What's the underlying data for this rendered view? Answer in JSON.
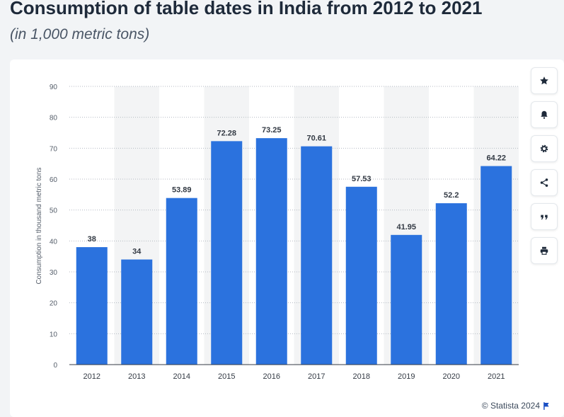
{
  "header": {
    "title": "Consumption of table dates in India from 2012 to 2021",
    "subtitle": "(in 1,000 metric tons)"
  },
  "toolbar": {
    "icons": [
      "star-icon",
      "bell-icon",
      "gear-icon",
      "share-icon",
      "quote-icon",
      "print-icon"
    ]
  },
  "credit": {
    "text": "© Statista 2024"
  },
  "colors": {
    "bar": "#2b72de",
    "grid_band": "#f3f4f5",
    "background": "#f2f4f6"
  },
  "chart_data": {
    "type": "bar",
    "categories": [
      "2012",
      "2013",
      "2014",
      "2015",
      "2016",
      "2017",
      "2018",
      "2019",
      "2020",
      "2021"
    ],
    "values": [
      38,
      34,
      53.89,
      72.28,
      73.25,
      70.61,
      57.53,
      41.95,
      52.2,
      64.22
    ],
    "data_labels": [
      "38",
      "34",
      "53.89",
      "72.28",
      "73.25",
      "70.61",
      "57.53",
      "41.95",
      "52.2",
      "64.22"
    ],
    "title": "",
    "xlabel": "",
    "ylabel": "Consumption in thousand metric tons",
    "ylim": [
      0,
      90
    ],
    "yticks": [
      0,
      10,
      20,
      30,
      40,
      50,
      60,
      70,
      80,
      90
    ],
    "grid": true,
    "legend": "none"
  }
}
